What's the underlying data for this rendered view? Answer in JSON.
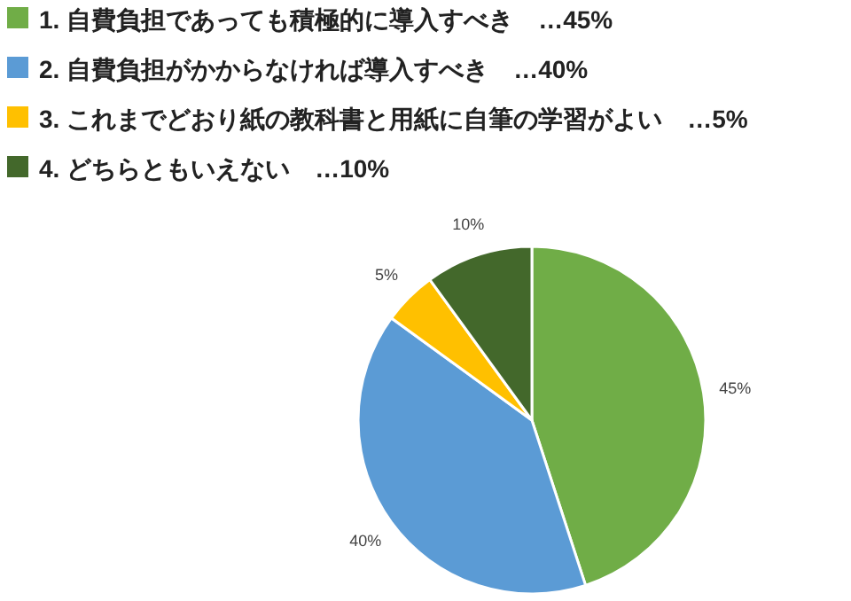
{
  "chart_data": {
    "type": "pie",
    "categories": [
      "1. 自費負担であっても積極的に導入すべき　…45%",
      "2. 自費負担がかからなければ導入すべき　…40%",
      "3. これまでどおり紙の教科書と用紙に自筆の学習がよい　…5%",
      "4. どちらともいえない　…10%"
    ],
    "values": [
      45,
      40,
      5,
      10
    ],
    "colors": [
      "#70ad47",
      "#5b9bd5",
      "#ffc000",
      "#43682b"
    ],
    "value_labels": [
      "45%",
      "40%",
      "5%",
      "10%"
    ],
    "legend": "top left"
  }
}
